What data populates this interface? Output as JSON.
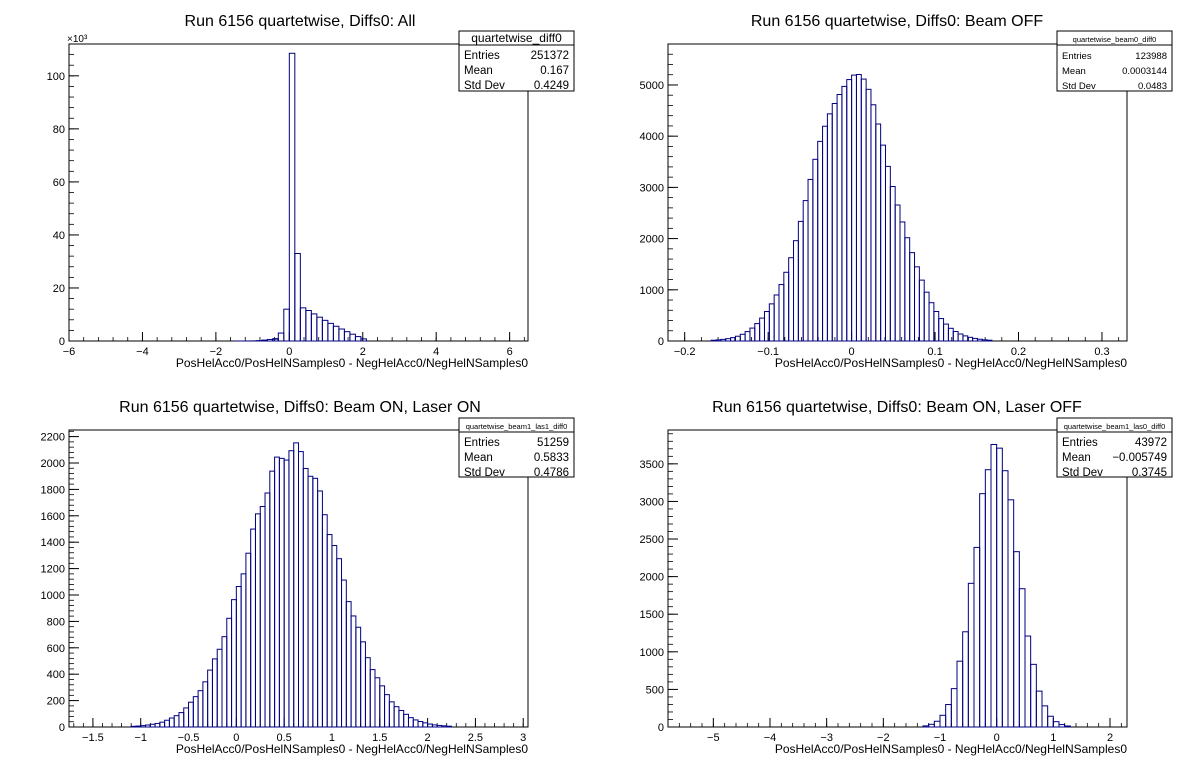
{
  "chart_data": [
    {
      "type": "histogram",
      "title": "Run 6156 quartetwise, Diffs0: All",
      "xlabel": "PosHelAcc0/PosHelNSamples0 - NegHelAcc0/NegHelNSamples0",
      "xlim": [
        -6,
        6.5
      ],
      "ylim": [
        0,
        112000
      ],
      "xticks": [
        -6,
        -4,
        -2,
        0,
        2,
        4,
        6
      ],
      "yticks": [
        0,
        20,
        40,
        60,
        80,
        100
      ],
      "yscale_label": "×10³",
      "shape": {
        "kind": "spike",
        "mu": 0,
        "tail_start": 0.2,
        "tail_end": 2.1,
        "tail_peak": 11500,
        "bin": 0.15,
        "spike_bins": [
          [
            -0.45,
            900
          ],
          [
            -0.3,
            3000
          ],
          [
            -0.15,
            12000
          ],
          [
            0,
            108500
          ],
          [
            0.15,
            33000
          ],
          [
            0.3,
            12500
          ]
        ]
      },
      "stats": {
        "name": "quartetwise_diff0",
        "rows": [
          [
            "Entries",
            "251372"
          ],
          [
            "Mean",
            "0.167"
          ],
          [
            "Std Dev",
            "0.4249"
          ]
        ]
      }
    },
    {
      "type": "histogram",
      "title": "Run 6156 quartetwise, Diffs0: Beam OFF",
      "xlabel": "PosHelAcc0/PosHelNSamples0 - NegHelAcc0/NegHelNSamples0",
      "xlim": [
        -0.22,
        0.33
      ],
      "ylim": [
        0,
        5800
      ],
      "xticks": [
        -0.2,
        -0.1,
        0,
        0.1,
        0.2,
        0.3
      ],
      "yticks": [
        0,
        1000,
        2000,
        3000,
        4000,
        5000
      ],
      "shape": {
        "kind": "gauss",
        "mu": 0.0003,
        "sigma": 0.0483,
        "peak": 5200,
        "bin": 0.0058,
        "range": [
          -0.18,
          0.18
        ]
      },
      "stats": {
        "name": "quartetwise_beam0_diff0",
        "rows": [
          [
            "Entries",
            "123988"
          ],
          [
            "Mean",
            "0.0003144"
          ],
          [
            "Std Dev",
            "0.0483"
          ]
        ]
      }
    },
    {
      "type": "histogram",
      "title": "Run 6156 quartetwise, Diffs0: Beam ON, Laser ON",
      "xlabel": "PosHelAcc0/PosHelNSamples0 - NegHelAcc0/NegHelNSamples0",
      "xlim": [
        -1.75,
        3.05
      ],
      "ylim": [
        0,
        2250
      ],
      "xticks": [
        -1.5,
        -1,
        -0.5,
        0,
        0.5,
        1,
        1.5,
        2,
        2.5,
        3
      ],
      "yticks": [
        0,
        200,
        400,
        600,
        800,
        1000,
        1200,
        1400,
        1600,
        1800,
        2000,
        2200
      ],
      "shape": {
        "kind": "gauss",
        "mu": 0.583,
        "sigma": 0.4786,
        "peak": 2100,
        "bin": 0.05,
        "range": [
          -1.3,
          2.5
        ]
      },
      "stats": {
        "name": "quartetwise_beam1_las1_diff0",
        "rows": [
          [
            "Entries",
            "51259"
          ],
          [
            "Mean",
            "0.5833"
          ],
          [
            "Std Dev",
            "0.4786"
          ]
        ]
      }
    },
    {
      "type": "histogram",
      "title": "Run 6156 quartetwise, Diffs0: Beam ON, Laser OFF",
      "xlabel": "PosHelAcc0/PosHelNSamples0 - NegHelAcc0/NegHelNSamples0",
      "xlim": [
        -5.8,
        2.3
      ],
      "ylim": [
        0,
        3950
      ],
      "xticks": [
        -5,
        -4,
        -3,
        -2,
        -1,
        0,
        1,
        2
      ],
      "yticks": [
        0,
        500,
        1000,
        1500,
        2000,
        2500,
        3000,
        3500
      ],
      "shape": {
        "kind": "gauss",
        "mu": -0.0057,
        "sigma": 0.3745,
        "peak": 3750,
        "bin": 0.1,
        "range": [
          -1.6,
          1.6
        ]
      },
      "stats": {
        "name": "quartetwise_beam1_las0_diff0",
        "rows": [
          [
            "Entries",
            "43972"
          ],
          [
            "Mean",
            "−0.005749"
          ],
          [
            "Std Dev",
            "0.3745"
          ]
        ]
      }
    }
  ]
}
